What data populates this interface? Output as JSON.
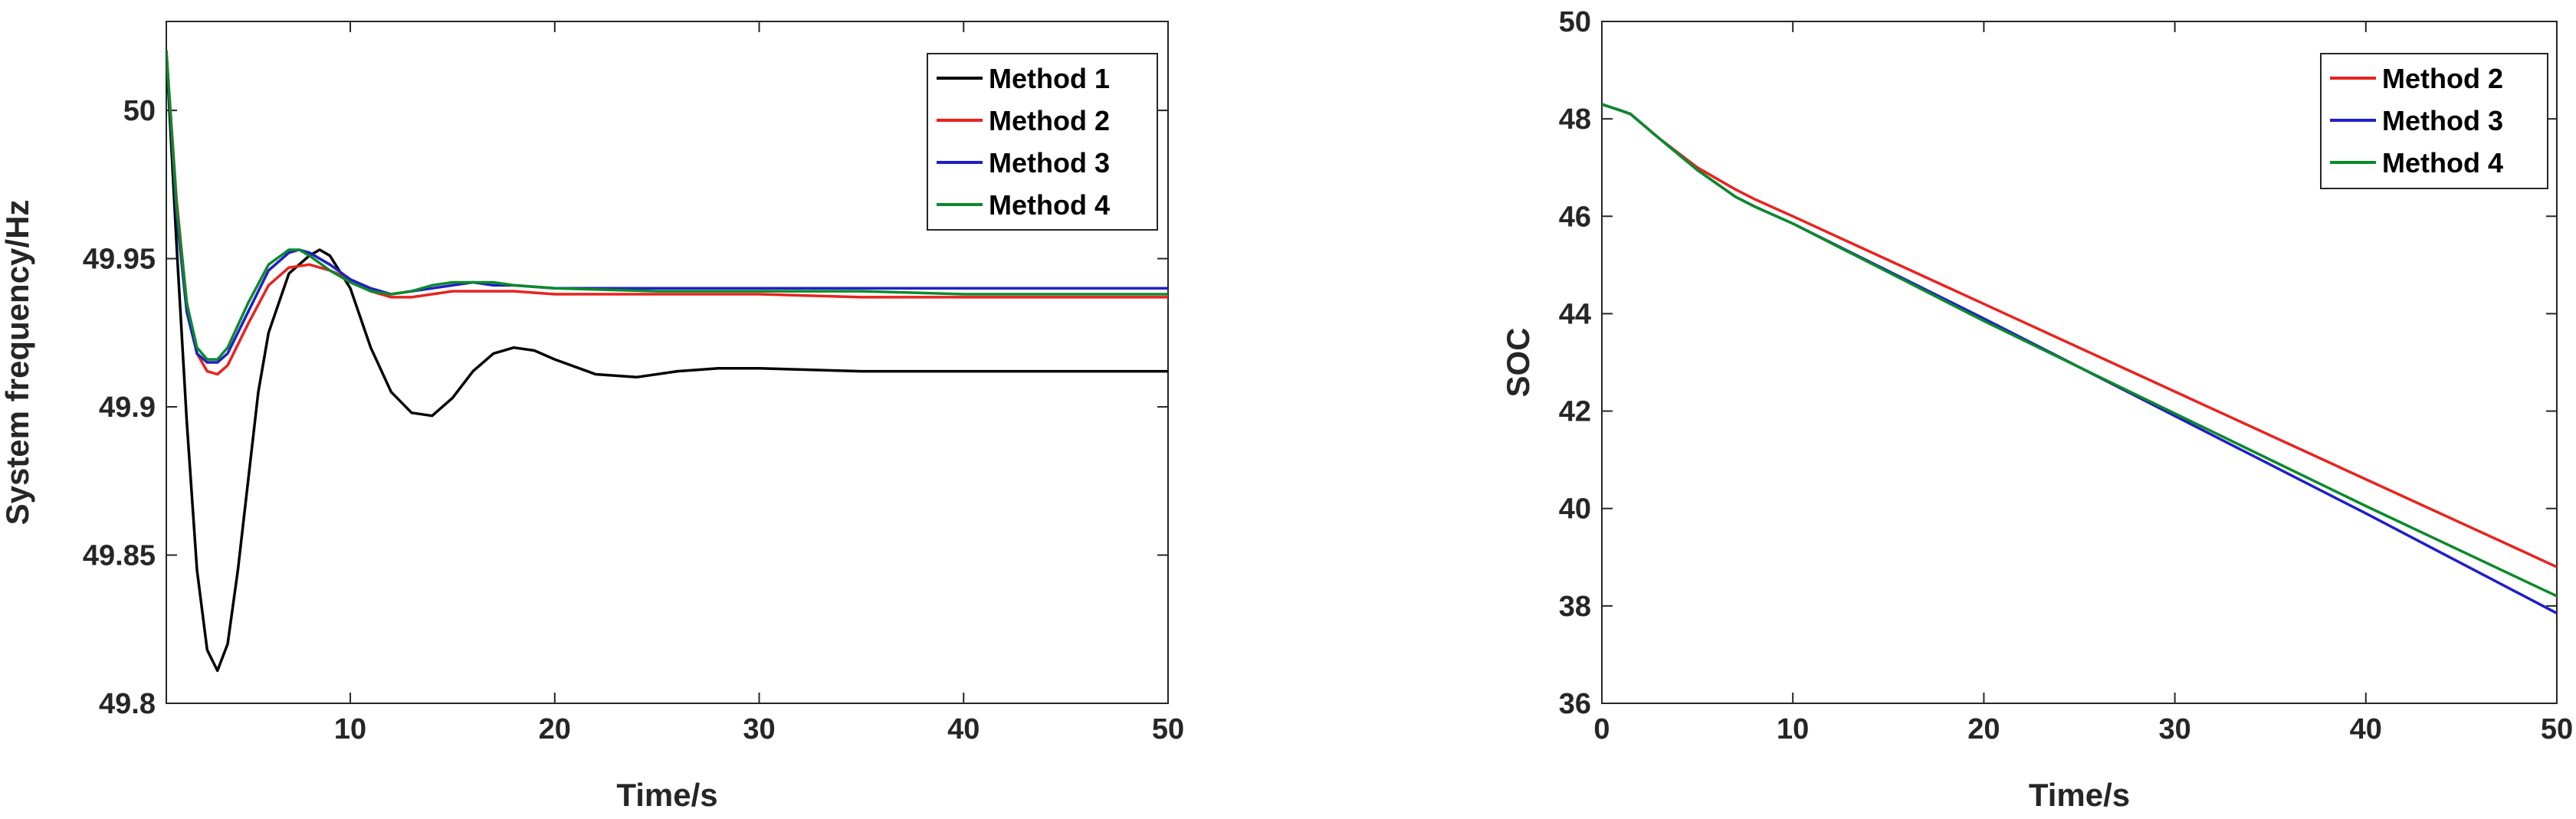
{
  "chart_data": [
    {
      "type": "line",
      "title": "",
      "xlabel": "Time/s",
      "ylabel": "System frequency/Hz",
      "xlim": [
        1,
        50
      ],
      "ylim": [
        49.8,
        50.03
      ],
      "xticks": [
        10,
        20,
        30,
        40,
        50
      ],
      "yticks": [
        49.8,
        49.85,
        49.9,
        49.95,
        50
      ],
      "ytick_labels": [
        "49.8",
        "49.85",
        "49.9",
        "49.95",
        "50"
      ],
      "grid": false,
      "legend_position": "top-right",
      "series": [
        {
          "name": "Method 1",
          "color": "#000000",
          "x": [
            1,
            1.5,
            2,
            2.5,
            3,
            3.5,
            4,
            4.5,
            5,
            5.5,
            6,
            7,
            8,
            8.5,
            9,
            10,
            11,
            12,
            13,
            14,
            15,
            16,
            17,
            18,
            19,
            20,
            22,
            24,
            26,
            28,
            30,
            35,
            40,
            45,
            50
          ],
          "y": [
            50.02,
            49.955,
            49.895,
            49.845,
            49.818,
            49.811,
            49.82,
            49.845,
            49.875,
            49.905,
            49.925,
            49.945,
            49.951,
            49.953,
            49.951,
            49.94,
            49.92,
            49.905,
            49.898,
            49.897,
            49.903,
            49.912,
            49.918,
            49.92,
            49.919,
            49.916,
            49.911,
            49.91,
            49.912,
            49.913,
            49.913,
            49.912,
            49.912,
            49.912,
            49.912
          ]
        },
        {
          "name": "Method 2",
          "color": "#e8231f",
          "x": [
            1,
            1.5,
            2,
            2.5,
            3,
            3.5,
            4,
            5,
            6,
            7,
            8,
            9,
            10,
            11,
            12,
            13,
            14,
            15,
            16,
            18,
            20,
            25,
            30,
            35,
            40,
            45,
            50
          ],
          "y": [
            50.02,
            49.97,
            49.935,
            49.918,
            49.912,
            49.911,
            49.914,
            49.928,
            49.941,
            49.947,
            49.948,
            49.946,
            49.943,
            49.939,
            49.937,
            49.937,
            49.938,
            49.939,
            49.939,
            49.939,
            49.938,
            49.938,
            49.938,
            49.937,
            49.937,
            49.937,
            49.937
          ]
        },
        {
          "name": "Method 3",
          "color": "#1f1fc8",
          "x": [
            1,
            1.5,
            2,
            2.5,
            3,
            3.5,
            4,
            5,
            6,
            7,
            7.5,
            8,
            9,
            10,
            11,
            12,
            13,
            14,
            15,
            16,
            17,
            18,
            20,
            25,
            30,
            35,
            40,
            45,
            50
          ],
          "y": [
            50.02,
            49.965,
            49.932,
            49.918,
            49.915,
            49.915,
            49.918,
            49.932,
            49.946,
            49.952,
            49.953,
            49.952,
            49.948,
            49.943,
            49.94,
            49.938,
            49.939,
            49.94,
            49.941,
            49.942,
            49.941,
            49.941,
            49.94,
            49.94,
            49.94,
            49.94,
            49.94,
            49.94,
            49.94
          ]
        },
        {
          "name": "Method 4",
          "color": "#0b8a2a",
          "x": [
            1,
            1.5,
            2,
            2.5,
            3,
            3.5,
            4,
            5,
            6,
            7,
            7.5,
            8,
            9,
            10,
            11,
            12,
            13,
            14,
            15,
            16,
            17,
            18,
            20,
            25,
            30,
            35,
            40,
            45,
            50
          ],
          "y": [
            50.02,
            49.968,
            49.935,
            49.92,
            49.916,
            49.916,
            49.92,
            49.935,
            49.948,
            49.953,
            49.953,
            49.951,
            49.946,
            49.942,
            49.939,
            49.938,
            49.939,
            49.941,
            49.942,
            49.942,
            49.942,
            49.941,
            49.94,
            49.939,
            49.939,
            49.939,
            49.938,
            49.938,
            49.938
          ]
        }
      ]
    },
    {
      "type": "line",
      "title": "",
      "xlabel": "Time/s",
      "ylabel": "SOC",
      "xlim": [
        0,
        50
      ],
      "ylim": [
        36,
        50
      ],
      "xticks": [
        0,
        10,
        20,
        30,
        40,
        50
      ],
      "yticks": [
        36,
        38,
        40,
        42,
        44,
        46,
        48,
        50
      ],
      "ytick_labels": [
        "36",
        "38",
        "40",
        "42",
        "44",
        "46",
        "48",
        "50"
      ],
      "grid": false,
      "legend_position": "top-right",
      "series": [
        {
          "name": "Method 2",
          "color": "#e8231f",
          "x": [
            0,
            1,
            1.5,
            3,
            5,
            7,
            8,
            10,
            20,
            30,
            40,
            50
          ],
          "y": [
            48.3,
            48.17,
            48.1,
            47.6,
            47.0,
            46.55,
            46.35,
            46.0,
            44.2,
            42.4,
            40.6,
            38.8
          ]
        },
        {
          "name": "Method 3",
          "color": "#1f1fc8",
          "x": [
            0,
            1,
            1.5,
            3,
            5,
            7,
            8,
            10,
            20,
            30,
            40,
            50
          ],
          "y": [
            48.3,
            48.17,
            48.1,
            47.6,
            46.95,
            46.4,
            46.2,
            45.85,
            43.9,
            41.9,
            39.9,
            37.85
          ]
        },
        {
          "name": "Method 4",
          "color": "#0b8a2a",
          "x": [
            0,
            1,
            1.5,
            3,
            5,
            7,
            8,
            10,
            20,
            30,
            40,
            50
          ],
          "y": [
            48.3,
            48.17,
            48.1,
            47.6,
            46.95,
            46.4,
            46.2,
            45.85,
            43.85,
            41.95,
            40.05,
            38.2
          ]
        }
      ]
    }
  ]
}
